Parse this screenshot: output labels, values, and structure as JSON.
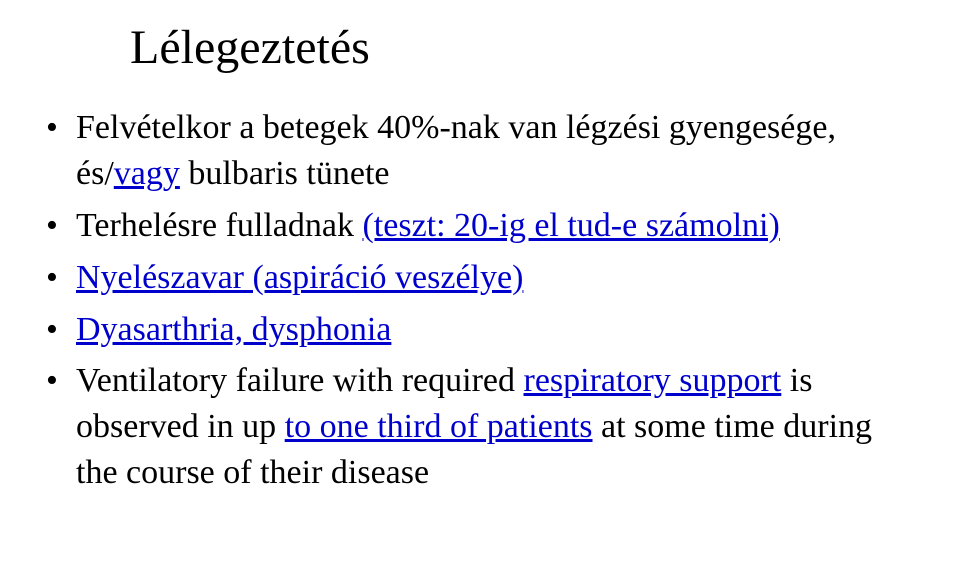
{
  "slide": {
    "title": "Lélegeztetés",
    "title_fontsize": 48,
    "bullet_fontsize": 34,
    "background_color": "#ffffff",
    "text_color": "#000000",
    "link_color": "#0000cc",
    "bullets": [
      {
        "prefix": "Felvételkor a betegek 40%-nak van légzési gyengesége, és/",
        "link": "vagy",
        "suffix": " bulbaris tünete"
      },
      {
        "prefix": "Terhelésre fulladnak ",
        "link": "(teszt: 20-ig el tud-e számolni)",
        "suffix": ""
      },
      {
        "prefix": "",
        "link": "Nyelészavar (aspiráció veszélye)",
        "suffix": ""
      },
      {
        "prefix": "",
        "link": "Dyasarthria, dysphonia",
        "suffix": ""
      },
      {
        "prefix": "Ventilatory failure with required ",
        "link": "respiratory support",
        "mid": " is observed in up ",
        "link2": "to one third of patients",
        "suffix": " at some time during the course of their disease"
      }
    ]
  }
}
